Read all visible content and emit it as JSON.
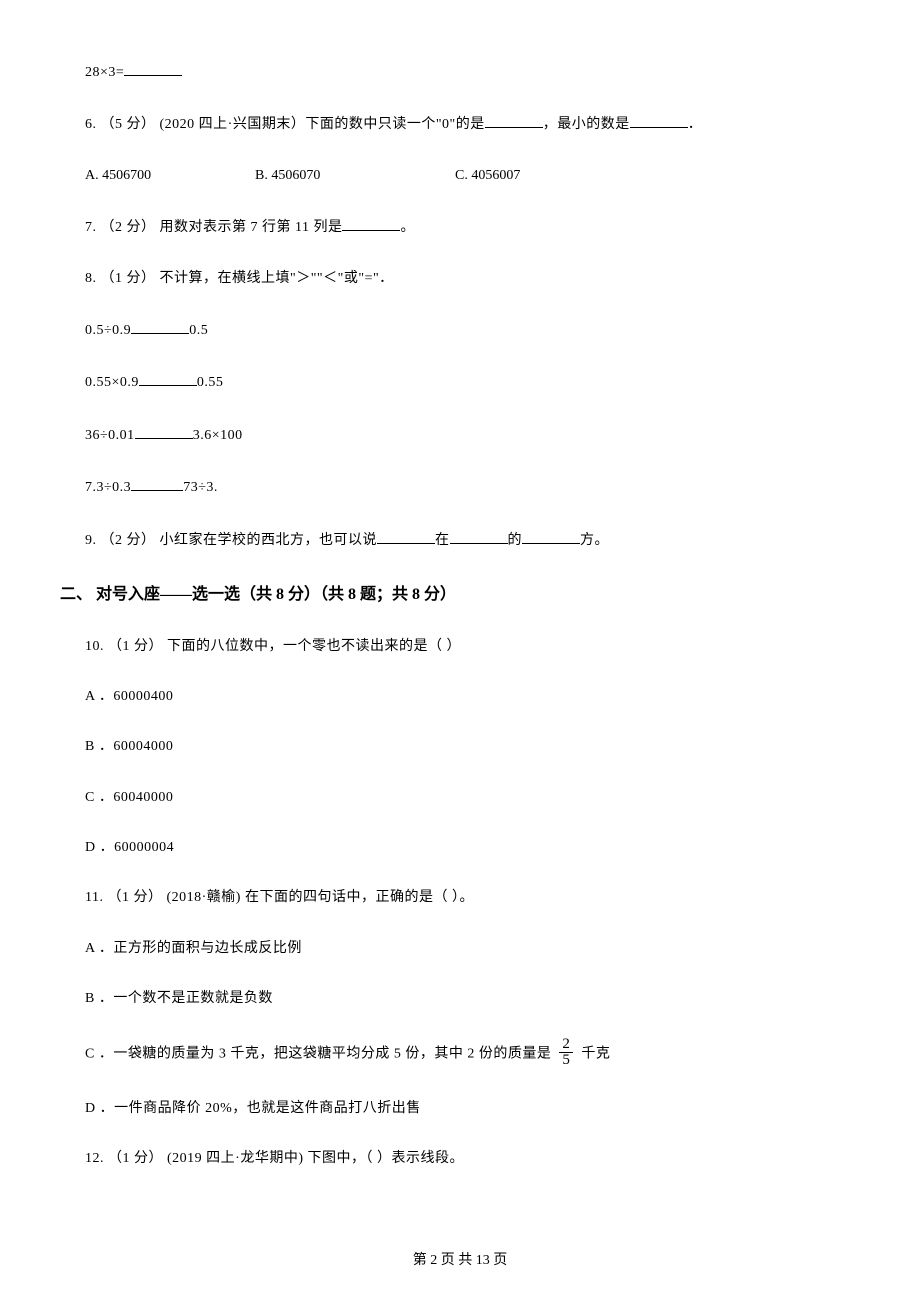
{
  "q5_line": "28×3=",
  "q6": {
    "prefix": "6. （5 分） (2020 四上·兴国期末）下面的数中只读一个\"0\"的是",
    "mid": "，最小的数是",
    "suffix": "．",
    "options": {
      "a": "A. 4506700",
      "b": "B. 4506070",
      "c": "C. 4056007"
    }
  },
  "q7": {
    "prefix": "7. （2 分） 用数对表示第 7 行第 11 列是",
    "suffix": "。"
  },
  "q8": {
    "text": "8. （1 分） 不计算，在横线上填\"＞\"\"＜\"或\"=\"．",
    "lines": {
      "l1_left": "0.5÷0.9",
      "l1_right": "0.5",
      "l2_left": "0.55×0.9",
      "l2_right": "0.55",
      "l3_left": "36÷0.01",
      "l3_right": "3.6×100",
      "l4_left": "7.3÷0.3",
      "l4_right": "73÷3."
    }
  },
  "q9": {
    "prefix": "9. （2 分） 小红家在学校的西北方，也可以说",
    "mid1": "在",
    "mid2": "的",
    "suffix": "方。"
  },
  "section2_heading": "二、 对号入座——选一选（共 8 分）（共 8 题；共 8 分）",
  "q10": {
    "text": "10. （1 分） 下面的八位数中，一个零也不读出来的是（    ）",
    "opts": {
      "a": "A ．60000400",
      "b": "B ．60004000",
      "c": "C ．60040000",
      "d": "D ．60000004"
    }
  },
  "q11": {
    "text": "11. （1 分） (2018·赣榆) 在下面的四句话中，正确的是（    ）。",
    "opts": {
      "a": "A ．正方形的面积与边长成反比例",
      "b": "B ．一个数不是正数就是负数",
      "c_pre": "C ．一袋糖的质量为 3 千克，把这袋糖平均分成 5 份，其中 2 份的质量是 ",
      "c_frac_num": "2",
      "c_frac_den": "5",
      "c_post": " 千克",
      "d": "D ．一件商品降价 20%，也就是这件商品打八折出售"
    }
  },
  "q12": {
    "text": "12. （1 分） (2019 四上·龙华期中) 下图中，（    ）表示线段。"
  },
  "footer": "第 2 页 共 13 页"
}
